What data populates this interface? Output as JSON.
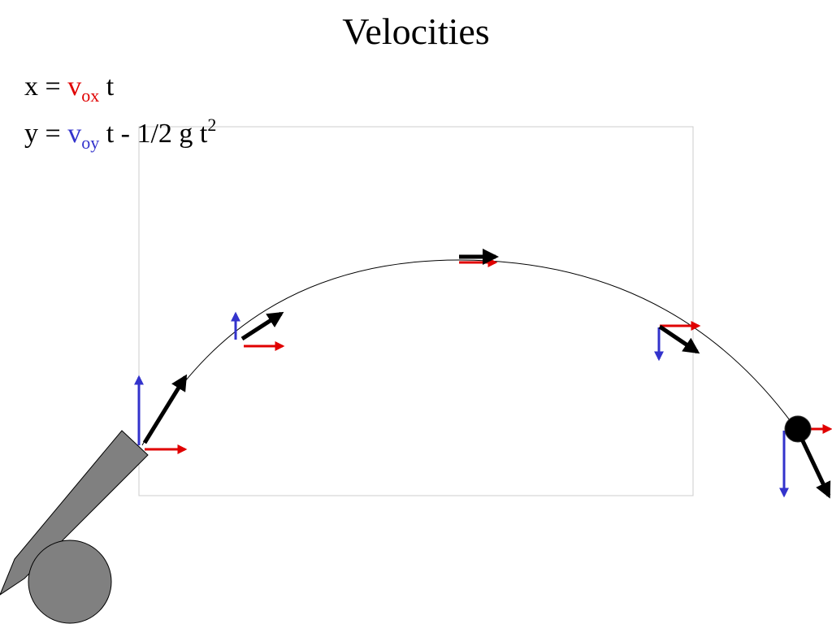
{
  "title": "Velocities",
  "equations": [
    {
      "lhs": "x =",
      "v": "v",
      "sub": "ox",
      "rest": "t"
    },
    {
      "lhs": "y =",
      "v": "v",
      "sub": "oy",
      "rest": "t - 1/2 g t",
      "sup": "2"
    }
  ]
}
